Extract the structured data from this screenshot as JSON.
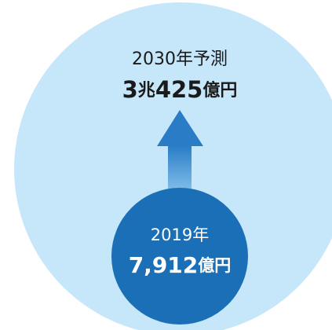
{
  "forecast": {
    "label": "2030年予測",
    "value_parts": [
      "3",
      "兆",
      "425",
      "億円"
    ]
  },
  "current": {
    "label": "2019年",
    "value_parts": [
      "7,912",
      "億円"
    ]
  }
}
